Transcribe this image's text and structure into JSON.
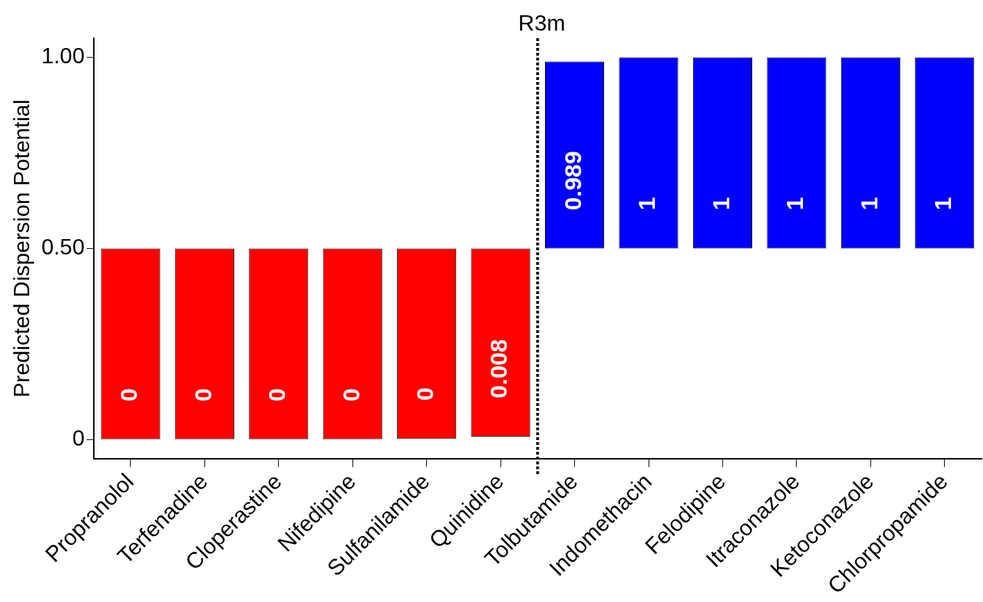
{
  "chart_data": {
    "type": "bar",
    "ylabel": "Predicted Dispersion Potential",
    "categories": [
      "Propranolol",
      "Terfenadine",
      "Cloperastine",
      "Nifedipine",
      "Sulfanilamide",
      "Quinidine",
      "Tolbutamide",
      "Indomethacin",
      "Felodipine",
      "Itraconazole",
      "Ketoconazole",
      "Chlorpropamide"
    ],
    "base": [
      0.5,
      0.5,
      0.5,
      0.5,
      0.5,
      0.5,
      0.5,
      0.5,
      0.5,
      0.5,
      0.5,
      0.5
    ],
    "values": [
      -0.5,
      -0.5,
      -0.5,
      -0.5,
      -0.498,
      -0.492,
      0.489,
      0.5,
      0.5,
      0.5,
      0.5,
      0.5
    ],
    "value_labels": [
      "0",
      "0",
      "0",
      "0",
      "0",
      "0.008",
      "0.989",
      "1",
      "1",
      "1",
      "1",
      "1"
    ],
    "colors": [
      "#ff0000",
      "#ff0000",
      "#ff0000",
      "#ff0000",
      "#ff0000",
      "#ff0000",
      "#0000ff",
      "#0000ff",
      "#0000ff",
      "#0000ff",
      "#0000ff",
      "#0000ff"
    ],
    "ylim": [
      -0.05,
      1.05
    ],
    "yticks": [
      0,
      {
        "value": 0.5,
        "label": "0.50"
      },
      {
        "value": 1,
        "label": "1.00"
      }
    ],
    "annotations": [
      "R3m"
    ],
    "grid": false,
    "legend": false
  }
}
